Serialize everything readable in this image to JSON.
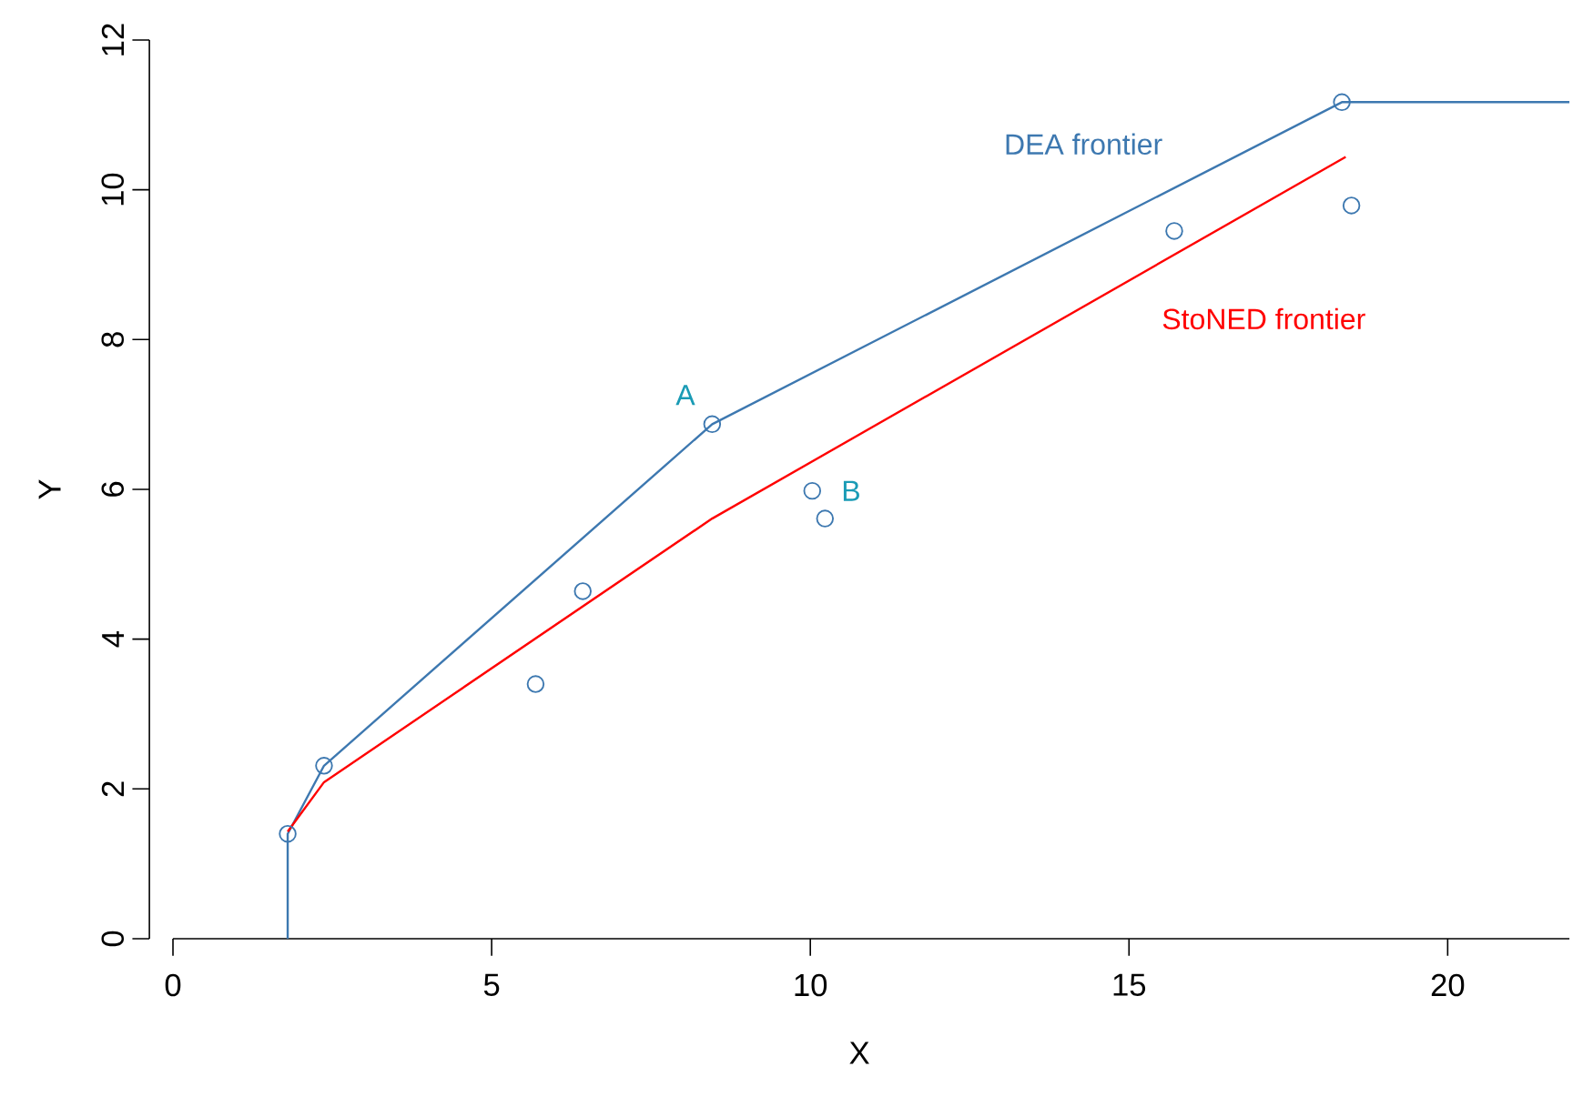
{
  "chart_data": {
    "type": "line",
    "xlabel": "X",
    "ylabel": "Y",
    "xlim": [
      -0.37,
      21.91
    ],
    "ylim": [
      0,
      12
    ],
    "xticks": [
      0,
      5,
      10,
      15,
      20
    ],
    "yticks": [
      0,
      2,
      4,
      6,
      8,
      10,
      12
    ],
    "grid": false,
    "series": [
      {
        "name": "DEA frontier",
        "color": "#3d78b0",
        "marker": "none",
        "x": [
          1.8,
          1.8,
          2.37,
          8.46,
          18.34,
          21.91
        ],
        "values": [
          0,
          1.4,
          2.31,
          6.87,
          11.17,
          11.17
        ]
      },
      {
        "name": "StoNED frontier",
        "color": "#ff0000",
        "marker": "none",
        "x": [
          1.8,
          2.37,
          8.46,
          18.4
        ],
        "values": [
          1.43,
          2.09,
          5.61,
          10.44
        ]
      },
      {
        "type": "scatter",
        "color": "#3d78b0",
        "marker": "circle",
        "x": [
          1.8,
          2.37,
          5.69,
          6.43,
          8.46,
          10.03,
          10.23,
          15.71,
          18.34,
          18.49
        ],
        "values": [
          1.4,
          2.31,
          3.4,
          4.64,
          6.87,
          5.98,
          5.61,
          9.45,
          11.17,
          9.79
        ]
      }
    ],
    "annotations": [
      {
        "text": "A",
        "x": 8.46,
        "y": 6.87
      },
      {
        "text": "B",
        "x": 10.03,
        "y": 5.98
      }
    ]
  }
}
